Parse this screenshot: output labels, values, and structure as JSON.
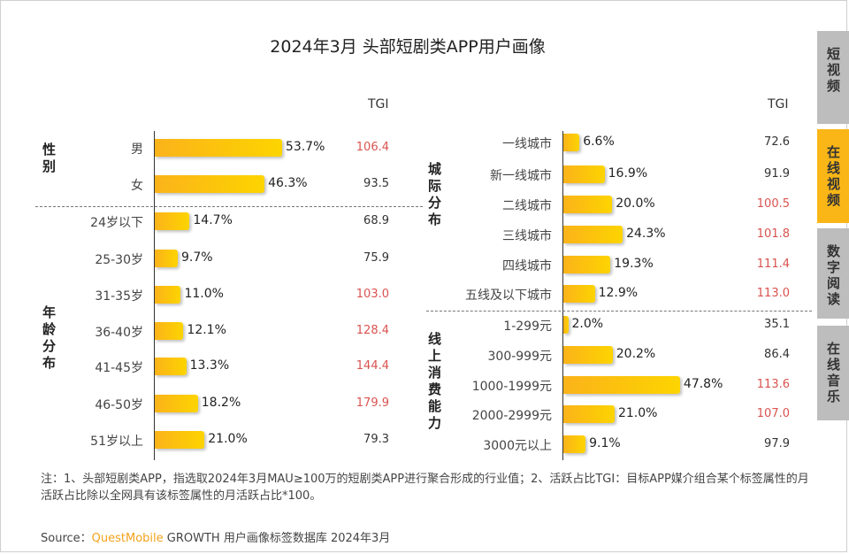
{
  "title": "2024年3月 头部短剧类APP用户画像",
  "watermark": "QUESTMOBILE",
  "tabs": [
    {
      "label": "短视频",
      "active": false
    },
    {
      "label": "在线视频",
      "active": true
    },
    {
      "label": "数字阅读",
      "active": false
    },
    {
      "label": "在线音乐",
      "active": false
    }
  ],
  "colors": {
    "bar": "#fbb31a",
    "tgi_high": "#d9534f",
    "tgi_normal": "#333333",
    "active_tab": "#f9b616"
  },
  "chart_data": [
    {
      "type": "bar",
      "orientation": "horizontal",
      "tgi_header": "TGI",
      "groups": [
        {
          "name": "性别",
          "categories": [
            "男",
            "女"
          ],
          "values": [
            53.7,
            46.3
          ],
          "tgi": [
            106.4,
            93.5
          ]
        },
        {
          "name": "年龄分布",
          "categories": [
            "24岁以下",
            "25-30岁",
            "31-35岁",
            "36-40岁",
            "41-45岁",
            "46-50岁",
            "51岁以上"
          ],
          "values": [
            14.7,
            9.7,
            11.0,
            12.1,
            13.3,
            18.2,
            21.0
          ],
          "tgi": [
            68.9,
            75.9,
            103.0,
            128.4,
            144.4,
            179.9,
            79.3
          ]
        }
      ]
    },
    {
      "type": "bar",
      "orientation": "horizontal",
      "tgi_header": "TGI",
      "groups": [
        {
          "name": "城际分布",
          "categories": [
            "一线城市",
            "新一线城市",
            "二线城市",
            "三线城市",
            "四线城市",
            "五线及以下城市"
          ],
          "values": [
            6.6,
            16.9,
            20.0,
            24.3,
            19.3,
            12.9
          ],
          "tgi": [
            72.6,
            91.9,
            100.5,
            101.8,
            111.4,
            113.0
          ]
        },
        {
          "name": "线上消费能力",
          "categories": [
            "1-299元",
            "300-999元",
            "1000-1999元",
            "2000-2999元",
            "3000元以上"
          ],
          "values": [
            2.0,
            20.2,
            47.8,
            21.0,
            9.1
          ],
          "tgi": [
            35.1,
            86.4,
            113.6,
            107.0,
            97.9
          ]
        }
      ]
    }
  ],
  "note": "注：1、头部短剧类APP，指选取2024年3月MAU≥100万的短剧类APP进行聚合形成的行业值；2、活跃占比TGI：目标APP媒介组合某个标签属性的月活跃占比除以全网具有该标签属性的月活跃占比*100。",
  "source": {
    "prefix": "Source：",
    "brand": "QuestMobile",
    "text": "GROWTH 用户画像标签数据库 2024年3月"
  }
}
